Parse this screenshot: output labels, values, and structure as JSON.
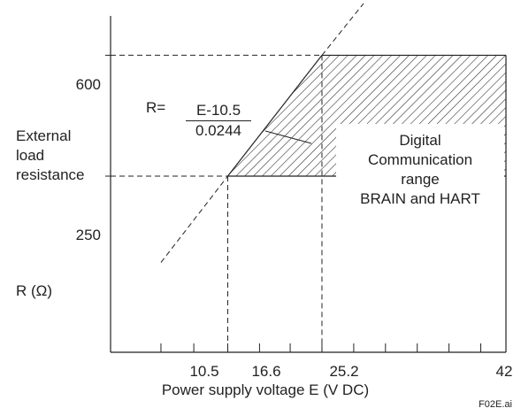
{
  "chart_data": {
    "type": "line",
    "ylabel_lines": [
      "External",
      "load",
      "resistance"
    ],
    "yunit": "R (Ω)",
    "xlabel": "Power supply voltage  E (V DC)",
    "xticks": [
      "10.5",
      "16.6",
      "25.2",
      "42"
    ],
    "yticks": [
      "600",
      "250"
    ],
    "xlim": [
      5.9,
      42
    ],
    "ylim": [
      -260,
      760
    ],
    "line": {
      "name": "R=(E-10.5)/0.0244",
      "x": [
        10.5,
        16.6,
        25.2,
        29.0
      ],
      "y": [
        0,
        250,
        600,
        750
      ]
    },
    "region": {
      "label_lines": [
        "Digital",
        "Communication",
        "range",
        "BRAIN and HART"
      ],
      "polygon": [
        [
          16.6,
          250
        ],
        [
          42,
          250
        ],
        [
          42,
          600
        ],
        [
          25.2,
          600
        ]
      ]
    },
    "dashed_guides": [
      [
        16.6,
        250
      ],
      [
        25.2,
        600
      ]
    ],
    "formula": {
      "lhs": "R=",
      "numerator": "E-10.5",
      "denominator": "0.0244"
    }
  },
  "figure_id": "F02E.ai"
}
